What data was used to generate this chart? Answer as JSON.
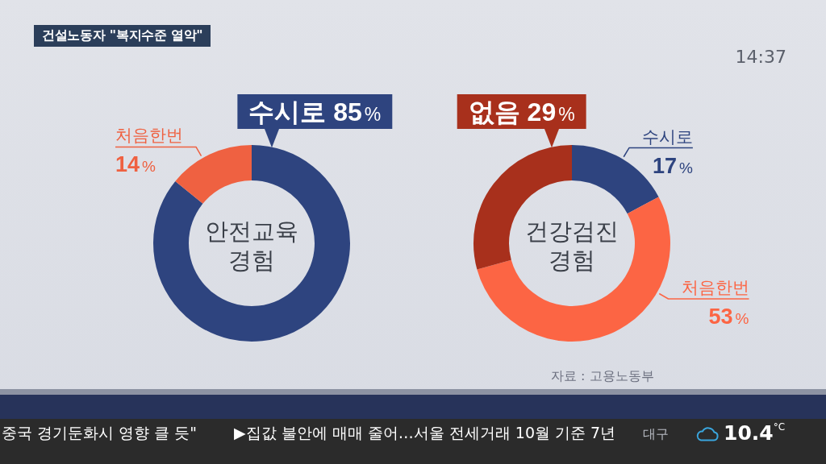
{
  "chart_data": [
    {
      "type": "donut",
      "title": "안전교육 경험",
      "categories": [
        "수시로",
        "처음한번"
      ],
      "values": [
        85,
        14
      ],
      "colors": [
        "#2e447f",
        "#ef6141"
      ],
      "value_labels": [
        "85%",
        "14%"
      ],
      "legend": false,
      "annotations": [
        "건설노동자 \"복지수준 열악\"",
        "14:37"
      ]
    },
    {
      "type": "donut",
      "title": "건강검진 경험",
      "categories": [
        "수시로",
        "처음한번",
        "없음"
      ],
      "values": [
        17,
        53,
        29
      ],
      "colors": [
        "#2e447f",
        "#fc6544",
        "#a8301c"
      ],
      "value_labels": [
        "17%",
        "53%",
        "29%"
      ],
      "legend": false,
      "annotations": [
        "자료 : 고용노동부",
        "중국 경기둔화시 영향 클 듯\"",
        "▶집값 불안에 매매 줄어…서울 전세거래 10월 기준 7년",
        "대구",
        "10.4$^{°C}$"
      ]
    }
  ]
}
